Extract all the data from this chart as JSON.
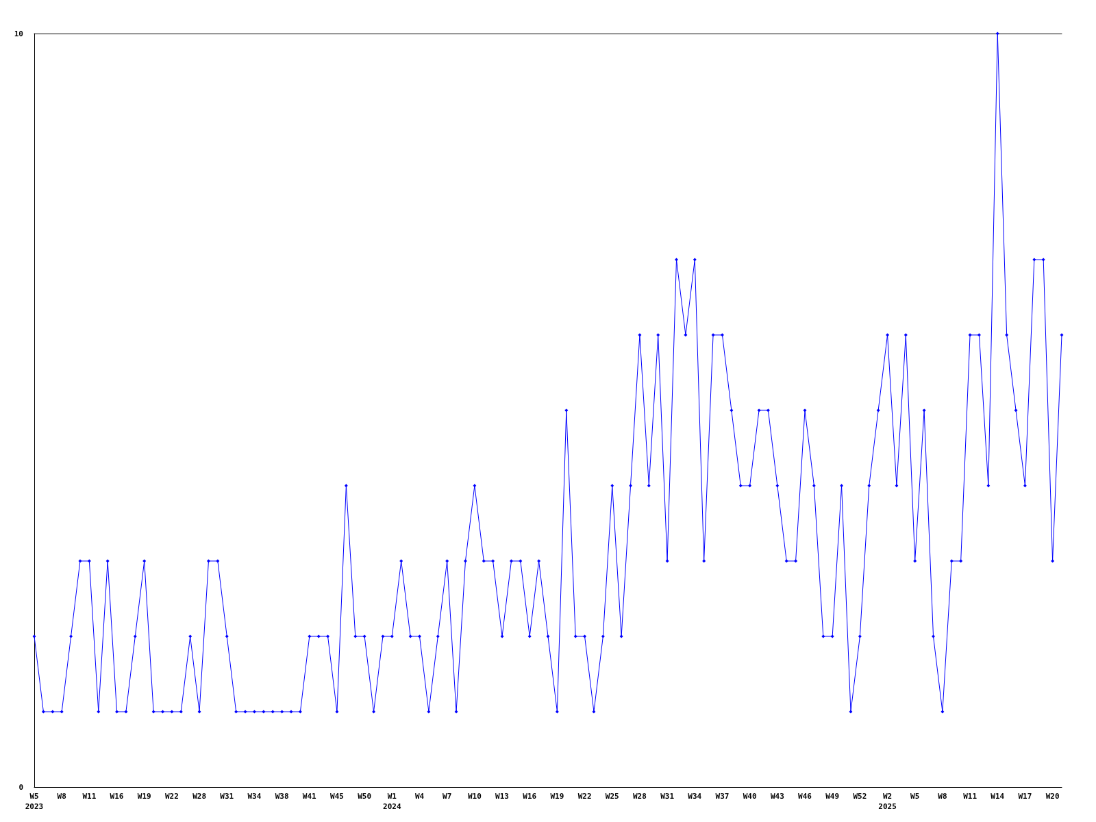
{
  "chart_data": {
    "type": "line",
    "categories": [
      "W5\n2023",
      null,
      null,
      "W8",
      null,
      null,
      "W11",
      null,
      null,
      "W16",
      null,
      null,
      "W19",
      null,
      null,
      "W22",
      null,
      null,
      "W28",
      null,
      null,
      "W31",
      null,
      null,
      "W34",
      null,
      null,
      "W38",
      null,
      null,
      "W41",
      null,
      null,
      "W45",
      null,
      null,
      "W50",
      null,
      null,
      "W1\n2024",
      null,
      null,
      "W4",
      null,
      null,
      "W7",
      null,
      null,
      "W10",
      null,
      null,
      "W13",
      null,
      null,
      "W16",
      null,
      null,
      "W19",
      null,
      null,
      "W22",
      null,
      null,
      "W25",
      null,
      null,
      "W28",
      null,
      null,
      "W31",
      null,
      null,
      "W34",
      null,
      null,
      "W37",
      null,
      null,
      "W40",
      null,
      null,
      "W43",
      null,
      null,
      "W46",
      null,
      null,
      "W49",
      null,
      null,
      "W52",
      null,
      null,
      "W2\n2025",
      null,
      null,
      "W5",
      null,
      null,
      "W8",
      null,
      null,
      "W11",
      null,
      null,
      "W14",
      null,
      null,
      "W17",
      null,
      null,
      "W20",
      null
    ],
    "series": [
      {
        "color": "#0000ff",
        "values": [
          2,
          1,
          1,
          1,
          2,
          3,
          3,
          1,
          3,
          1,
          1,
          2,
          3,
          1,
          1,
          1,
          1,
          2,
          1,
          3,
          3,
          2,
          1,
          1,
          1,
          1,
          1,
          1,
          1,
          1,
          2,
          2,
          2,
          1,
          4,
          2,
          2,
          1,
          2,
          2,
          3,
          2,
          2,
          1,
          2,
          3,
          1,
          3,
          4,
          3,
          3,
          2,
          3,
          3,
          2,
          3,
          2,
          1,
          5,
          2,
          2,
          1,
          2,
          4,
          2,
          4,
          6,
          4,
          6,
          3,
          7,
          6,
          7,
          3,
          6,
          6,
          5,
          4,
          4,
          5,
          5,
          4,
          3,
          3,
          5,
          4,
          2,
          2,
          4,
          1,
          2,
          4,
          5,
          6,
          4,
          6,
          3,
          5,
          2,
          1,
          3,
          3,
          6,
          6,
          4,
          10,
          6,
          5,
          4,
          7,
          7,
          3,
          6
        ]
      }
    ],
    "ylim": [
      0,
      10
    ],
    "yticks": [
      0,
      10
    ],
    "grid": false,
    "marker": "diamond",
    "line_style": "solid"
  }
}
